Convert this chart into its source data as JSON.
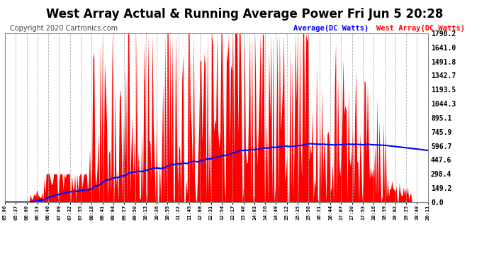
{
  "title": "West Array Actual & Running Average Power Fri Jun 5 20:28",
  "copyright": "Copyright 2020 Cartronics.com",
  "ylabel_right": [
    "1790.2",
    "1641.0",
    "1491.8",
    "1342.7",
    "1193.5",
    "1044.3",
    "895.1",
    "745.9",
    "596.7",
    "447.6",
    "298.4",
    "149.2",
    "0.0"
  ],
  "ytick_vals": [
    1790.2,
    1641.0,
    1491.8,
    1342.7,
    1193.5,
    1044.3,
    895.1,
    745.9,
    596.7,
    447.6,
    298.4,
    149.2,
    0.0
  ],
  "ymax": 1790.2,
  "ymin": 0.0,
  "legend_average_label": "Average(DC Watts)",
  "legend_west_label": "West Array(DC Watts)",
  "average_color": "blue",
  "west_color": "red",
  "background_color": "#ffffff",
  "plot_bg_color": "#ffffff",
  "title_fontsize": 12,
  "copyright_fontsize": 7,
  "xtick_labels": [
    "05:06",
    "05:37",
    "06:00",
    "06:23",
    "06:46",
    "07:09",
    "07:32",
    "07:55",
    "08:18",
    "08:41",
    "09:04",
    "09:27",
    "09:50",
    "10:13",
    "10:36",
    "10:59",
    "11:22",
    "11:45",
    "12:08",
    "12:31",
    "12:54",
    "13:17",
    "13:40",
    "14:03",
    "14:26",
    "14:49",
    "15:12",
    "15:35",
    "15:58",
    "16:21",
    "16:44",
    "17:07",
    "17:30",
    "17:53",
    "18:16",
    "18:39",
    "19:02",
    "19:25",
    "19:48",
    "20:11"
  ],
  "n_points": 400
}
